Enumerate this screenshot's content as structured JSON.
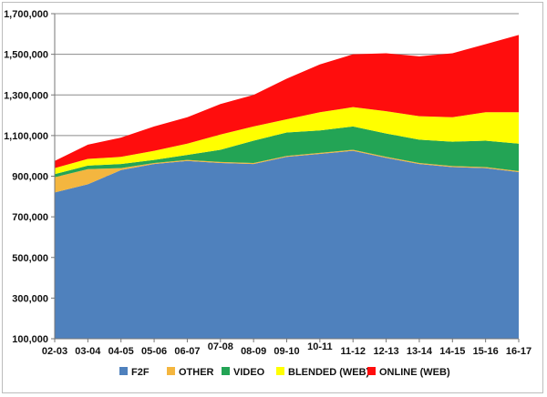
{
  "chart_data": {
    "type": "area",
    "stacked": true,
    "title": "",
    "xlabel": "",
    "ylabel": "",
    "categories": [
      "02-03",
      "03-04",
      "04-05",
      "05-06",
      "06-07",
      "07-08",
      "08-09",
      "09-10",
      "10-11",
      "11-12",
      "12-13",
      "13-14",
      "14-15",
      "15-16",
      "16-17"
    ],
    "ylim": [
      100000,
      1700000
    ],
    "yticks": [
      100000,
      300000,
      500000,
      700000,
      900000,
      1100000,
      1300000,
      1500000,
      1700000
    ],
    "ytick_labels": [
      "100,000",
      "300,000",
      "500,000",
      "700,000",
      "900,000",
      "1,100,000",
      "1,300,000",
      "1,500,000",
      "1,700,000"
    ],
    "grid": "horizontal",
    "legend_position": "bottom",
    "series": [
      {
        "name": "F2F",
        "color": "#4f81bd",
        "values": [
          820000,
          860000,
          930000,
          960000,
          975000,
          965000,
          960000,
          995000,
          1010000,
          1025000,
          990000,
          960000,
          945000,
          940000,
          920000
        ]
      },
      {
        "name": "OTHER",
        "color": "#f4b63f",
        "values": [
          75000,
          75000,
          10000,
          5000,
          5000,
          5000,
          5000,
          5000,
          5000,
          5000,
          5000,
          5000,
          5000,
          5000,
          5000
        ]
      },
      {
        "name": "VIDEO",
        "color": "#23a455",
        "values": [
          15000,
          17000,
          20000,
          15000,
          25000,
          60000,
          110000,
          115000,
          110000,
          115000,
          115000,
          115000,
          120000,
          130000,
          135000
        ]
      },
      {
        "name": "BLENDED (WEB)",
        "color": "#ffff00",
        "values": [
          30000,
          33000,
          35000,
          45000,
          55000,
          75000,
          70000,
          65000,
          90000,
          95000,
          110000,
          115000,
          120000,
          140000,
          155000
        ]
      },
      {
        "name": "ONLINE (WEB)",
        "color": "#ff0d0d",
        "values": [
          35000,
          70000,
          95000,
          120000,
          130000,
          150000,
          155000,
          200000,
          235000,
          260000,
          285000,
          295000,
          315000,
          335000,
          380000
        ]
      }
    ]
  }
}
